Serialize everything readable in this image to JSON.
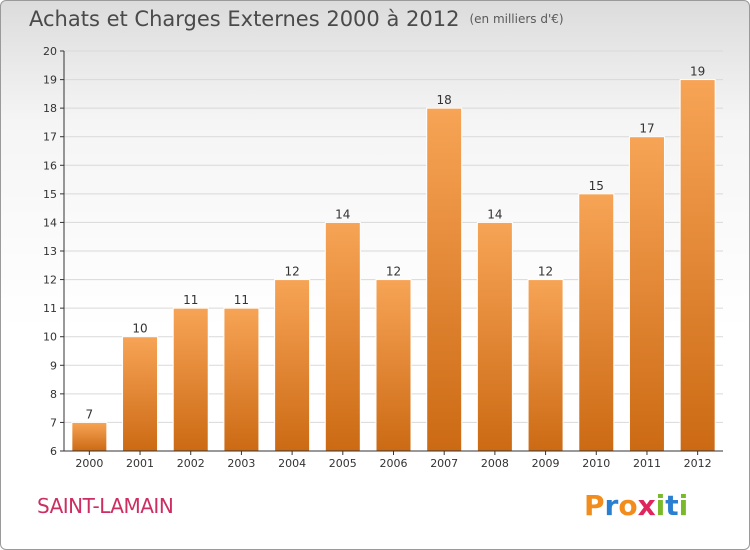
{
  "title": "Achats et Charges Externes 2000 à 2012",
  "unit": "(en milliers d'€)",
  "commune": "SAINT-LAMAIN",
  "logo": {
    "letters": [
      "P",
      "r",
      "o",
      "x",
      "i",
      "t",
      "i"
    ],
    "colors": [
      "#f28c1c",
      "#2b7fd0",
      "#f28c1c",
      "#e0245e",
      "#7ab929",
      "#2b7fd0",
      "#7ab929"
    ]
  },
  "colors": {
    "bar_light": "#f7a456",
    "bar_dark": "#cc6a14",
    "bar_stroke": "#ffffff",
    "grid": "#d9d9d9",
    "axis": "#333333",
    "text": "#333333"
  },
  "chart_data": {
    "type": "bar",
    "categories": [
      "2000",
      "2001",
      "2002",
      "2003",
      "2004",
      "2005",
      "2006",
      "2007",
      "2008",
      "2009",
      "2010",
      "2011",
      "2012"
    ],
    "values": [
      7,
      10,
      11,
      11,
      12,
      14,
      12,
      18,
      14,
      12,
      15,
      17,
      19
    ],
    "data_labels": [
      "7",
      "10",
      "11",
      "11",
      "12",
      "14",
      "12",
      "18",
      "14",
      "12",
      "15",
      "17",
      "19"
    ],
    "ylim": [
      6,
      20
    ],
    "yticks": [
      "6",
      "7",
      "8",
      "9",
      "10",
      "11",
      "12",
      "13",
      "14",
      "15",
      "16",
      "17",
      "18",
      "19",
      "20"
    ],
    "grid": true,
    "legend": "none"
  }
}
